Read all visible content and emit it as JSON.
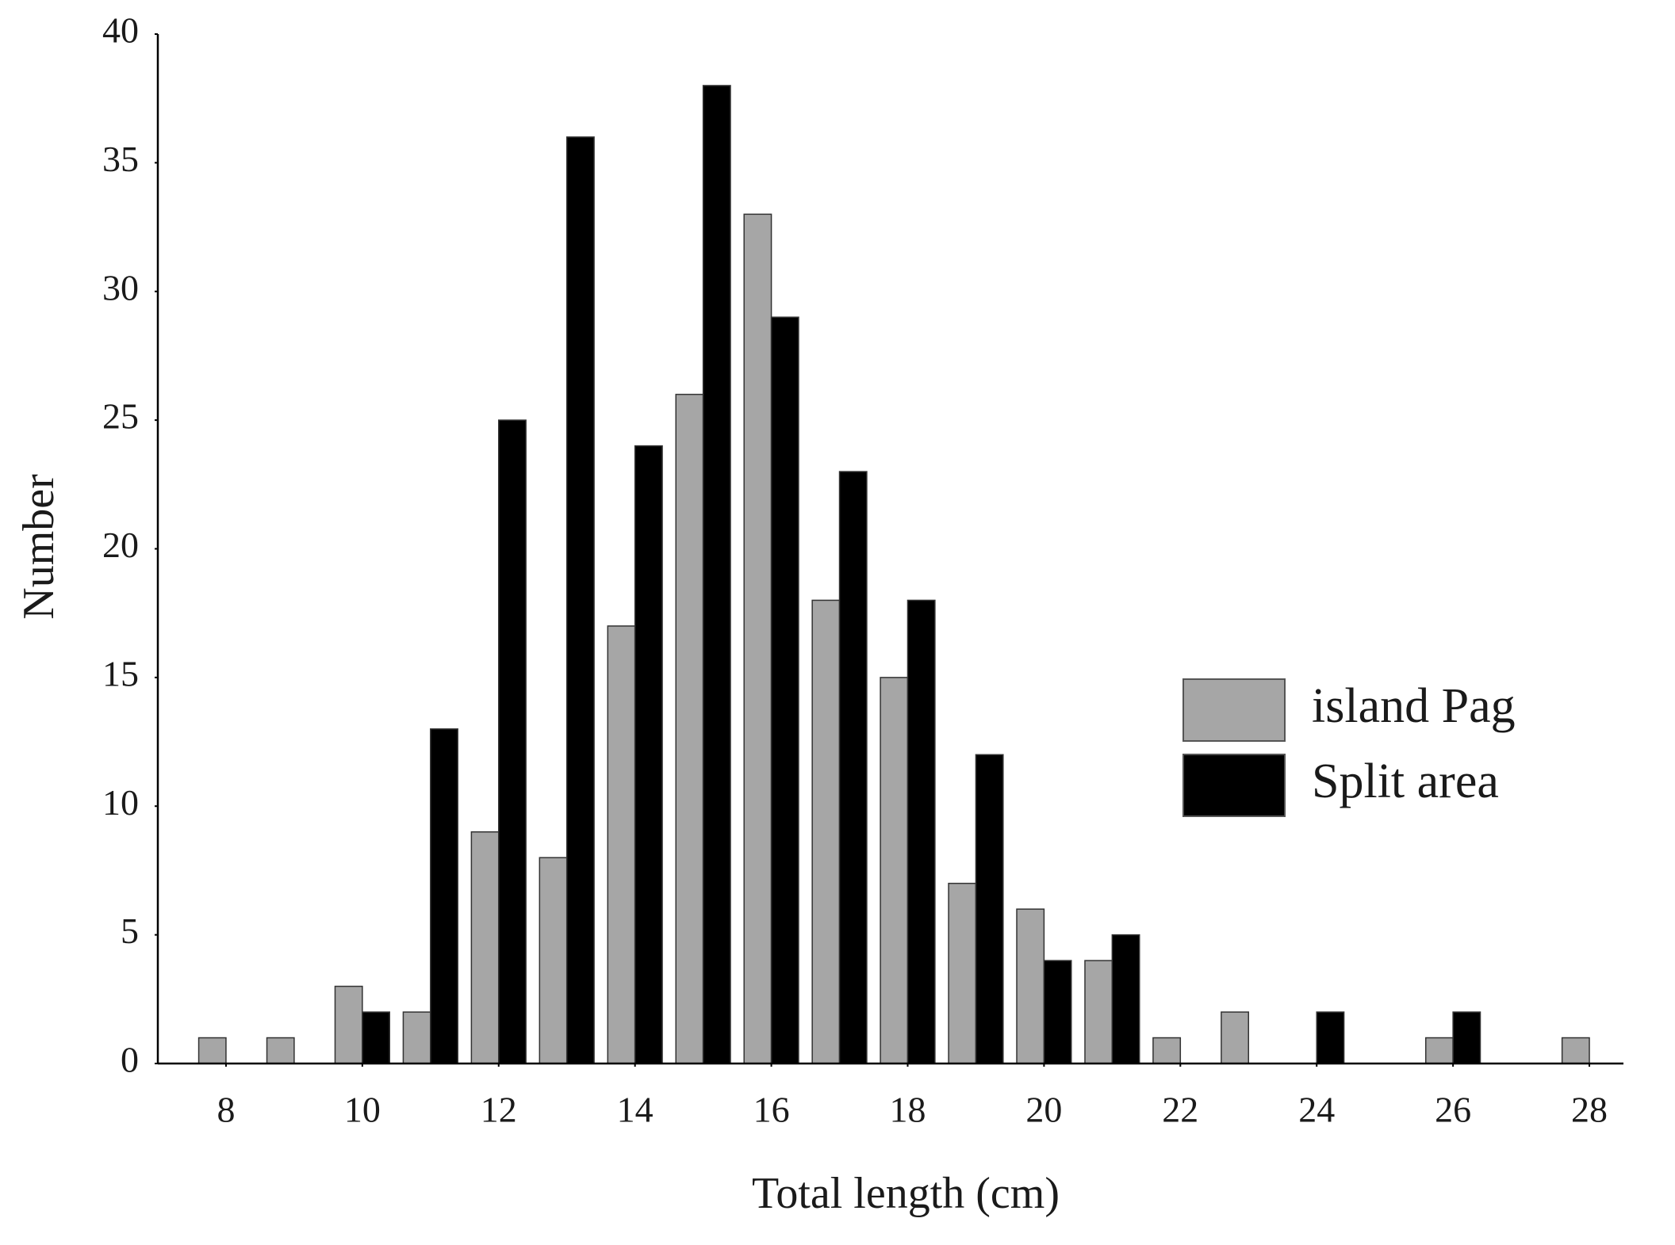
{
  "chart_data": {
    "type": "bar",
    "x_label": "Total length (cm)",
    "y_label": "Number",
    "x": [
      8,
      9,
      10,
      11,
      12,
      13,
      14,
      15,
      16,
      17,
      18,
      19,
      20,
      21,
      22,
      23,
      24,
      25,
      26,
      27,
      28
    ],
    "series": [
      {
        "name": "island Pag",
        "color": "#a6a6a6",
        "values": [
          1,
          1,
          3,
          2,
          9,
          8,
          17,
          26,
          33,
          18,
          15,
          7,
          6,
          4,
          1,
          2,
          0,
          0,
          1,
          0,
          1
        ]
      },
      {
        "name": "Split area",
        "color": "#000000",
        "values": [
          0,
          0,
          2,
          13,
          25,
          36,
          24,
          38,
          29,
          23,
          18,
          12,
          4,
          5,
          0,
          0,
          2,
          0,
          2,
          0,
          0
        ]
      }
    ],
    "xlim": [
      7,
      28.5
    ],
    "xticks": [
      8,
      10,
      12,
      14,
      16,
      18,
      20,
      22,
      24,
      26,
      28
    ],
    "ylim": [
      0,
      40
    ],
    "yticks": [
      0,
      5,
      10,
      15,
      20,
      25,
      30,
      35,
      40
    ],
    "grid": false,
    "legend": "right"
  }
}
